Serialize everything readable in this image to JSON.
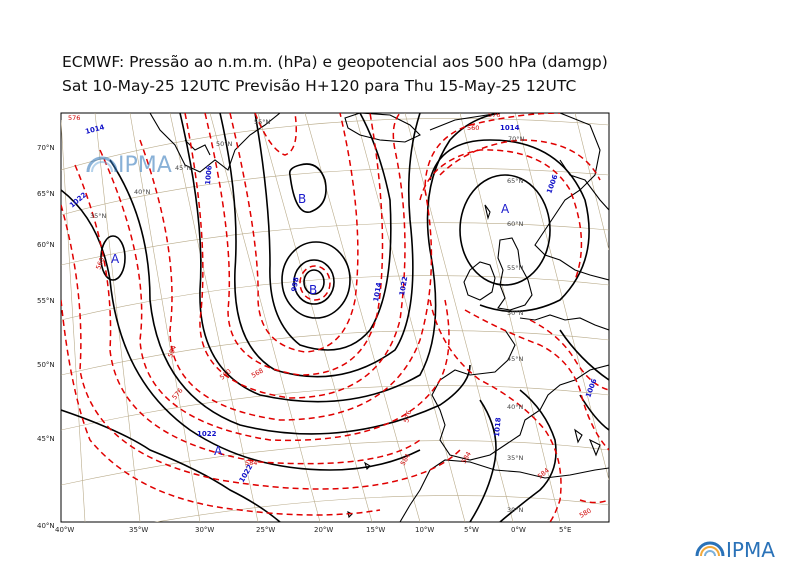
{
  "title_line1": "ECMWF:  Pressão ao n.m.m. (hPa) e geopotencial aos 500 hPa (damgp)",
  "title_line2": "Sat 10-May-25 12UTC Previsão H+120 para Thu 15-May-25 12UTC",
  "brand": "IPMA",
  "axis_left": [
    "70°N",
    "65°N",
    "60°N",
    "55°N",
    "50°N",
    "45°N",
    "40°N"
  ],
  "axis_bottom": [
    "40°W",
    "35°W",
    "30°W",
    "25°W",
    "20°W",
    "15°W",
    "10°W",
    "5°W",
    "0°W",
    "5°E"
  ],
  "grid_labels": [
    {
      "text": "55°N"
    },
    {
      "text": "50°N"
    },
    {
      "text": "45°N"
    },
    {
      "text": "40°N"
    },
    {
      "text": "35°N"
    },
    {
      "text": "70°N"
    },
    {
      "text": "65°N"
    },
    {
      "text": "60°N"
    },
    {
      "text": "55°N"
    },
    {
      "text": "50°N"
    },
    {
      "text": "45°N"
    },
    {
      "text": "40°N"
    },
    {
      "text": "35°N"
    },
    {
      "text": "30°N"
    }
  ],
  "pressure_labels": [
    "1014",
    "1022",
    "1006",
    "1014",
    "1022",
    "1022",
    "1022",
    "1018",
    "1006",
    "998",
    "1006",
    "1014"
  ],
  "geopot_labels": [
    "576",
    "560",
    "584",
    "576",
    "560",
    "568",
    "584",
    "576",
    "584",
    "560",
    "576",
    "584",
    "580",
    "584"
  ],
  "centers": [
    {
      "type": "B",
      "label": "B"
    },
    {
      "type": "B",
      "label": "B"
    },
    {
      "type": "A",
      "label": "A"
    },
    {
      "type": "A",
      "label": "A"
    },
    {
      "type": "A",
      "label": "A"
    }
  ],
  "colors": {
    "pressure": "#000000",
    "geopotential": "#e00000",
    "labels": "#1010c8",
    "graticule": "#b9ab8a",
    "logo_blue": "#2a72b8"
  }
}
